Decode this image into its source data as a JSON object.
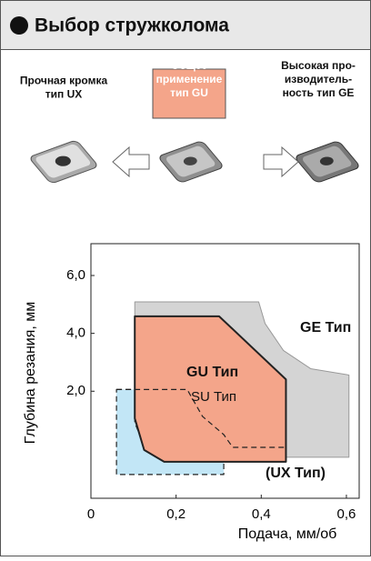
{
  "header": {
    "title": "Выбор стружколома"
  },
  "top": {
    "items": [
      {
        "lines": [
          "Прочная кромка",
          "тип UX"
        ]
      },
      {
        "lines": [
          "Общее",
          "применение",
          "тип GU"
        ]
      },
      {
        "lines": [
          "Высокая про-",
          "изводитель-",
          "ность тип GE"
        ]
      }
    ]
  },
  "chart_data": {
    "type": "region",
    "xlabel": "Подача, мм/об",
    "ylabel": "Глубина резания, мм",
    "xlim": [
      0,
      0.63
    ],
    "ylim": [
      -1.7,
      7.1
    ],
    "xticks": [
      0,
      {
        "value": 0.2,
        "label": "0,2"
      },
      {
        "value": 0.4,
        "label": "0,4"
      },
      {
        "value": 0.6,
        "label": "0,6"
      }
    ],
    "yticks": [
      {
        "value": 2,
        "label": "2,0"
      },
      {
        "value": 4,
        "label": "4,0"
      },
      {
        "value": 6,
        "label": "6,0"
      }
    ],
    "grid": false,
    "series": [
      {
        "name": "GE Тип",
        "color": "#d4d4d4",
        "x": [
          0.103,
          0.394,
          0.409,
          0.452,
          0.516,
          0.606,
          0.606,
          0.103
        ],
        "y": [
          5.09,
          5.09,
          4.34,
          3.41,
          2.78,
          2.56,
          -0.28,
          -0.28
        ]
      },
      {
        "name": "GU Тип",
        "color": "#f4a58a",
        "x": [
          0.103,
          0.301,
          0.458,
          0.458,
          0.172,
          0.125,
          0.103
        ],
        "y": [
          4.59,
          4.59,
          2.41,
          -0.44,
          -0.44,
          -0.03,
          1.06
        ]
      },
      {
        "name": "SU Тип",
        "color": "#c2e6f6",
        "x": [
          0.06,
          0.103,
          0.103,
          0.129,
          0.183,
          0.312,
          0.312,
          0.06
        ],
        "y": [
          2.06,
          2.06,
          0.91,
          -0.03,
          -0.44,
          -0.44,
          -0.88,
          -0.88
        ]
      },
      {
        "name": "(UX Тип)",
        "color": "none",
        "x": [
          0.06,
          0.226,
          0.262,
          0.312,
          0.333,
          0.458
        ],
        "y": [
          2.06,
          2.06,
          1.13,
          0.5,
          0.06,
          0.06
        ]
      }
    ]
  }
}
